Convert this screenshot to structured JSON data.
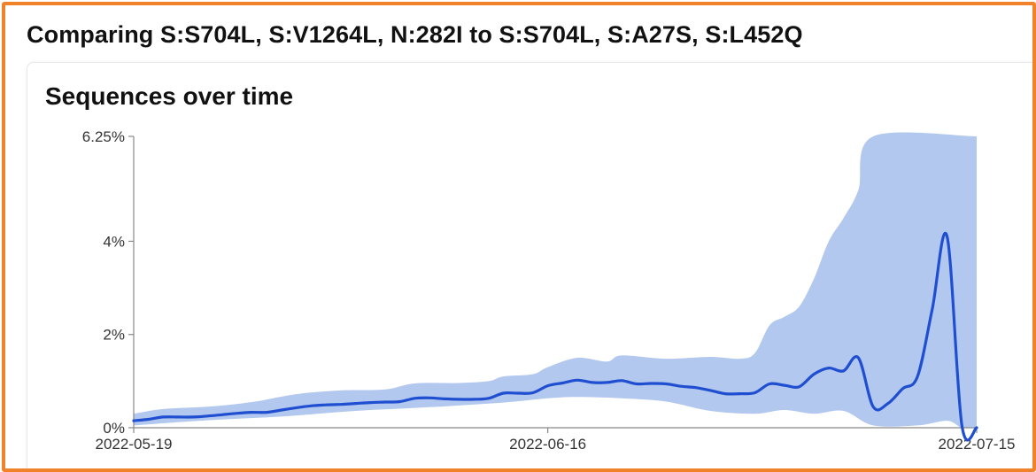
{
  "page": {
    "title": "Comparing S:S704L, S:V1264L, N:282I to S:S704L, S:A27S, S:L452Q"
  },
  "card": {
    "title": "Sequences over time"
  },
  "colors": {
    "frame_border": "#f0832a",
    "line": "#1f4fd0",
    "band": "#b3c8ef",
    "axis": "#888888"
  },
  "chart_data": {
    "type": "area",
    "x_type": "date",
    "xlabel": "",
    "ylabel": "",
    "xlim": [
      "2022-05-19",
      "2022-07-15"
    ],
    "ylim": [
      0,
      6.25
    ],
    "y_unit": "%",
    "y_ticks": [
      {
        "value": 0,
        "label": "0%"
      },
      {
        "value": 2,
        "label": "2%"
      },
      {
        "value": 4,
        "label": "4%"
      },
      {
        "value": 6.25,
        "label": "6.25%"
      }
    ],
    "x_ticks": [
      {
        "value": "2022-05-19",
        "label": "2022-05-19"
      },
      {
        "value": "2022-06-16",
        "label": "2022-06-16"
      },
      {
        "value": "2022-07-15",
        "label": "2022-07-15"
      }
    ],
    "grid": false,
    "legend": "none",
    "series": [
      {
        "kind": "line",
        "points": [
          [
            "2022-05-19",
            0.15
          ],
          [
            "2022-05-20",
            0.18
          ],
          [
            "2022-05-21",
            0.23
          ],
          [
            "2022-05-22",
            0.23
          ],
          [
            "2022-05-23",
            0.23
          ],
          [
            "2022-05-24",
            0.25
          ],
          [
            "2022-05-25",
            0.28
          ],
          [
            "2022-05-26",
            0.31
          ],
          [
            "2022-05-27",
            0.33
          ],
          [
            "2022-05-28",
            0.33
          ],
          [
            "2022-05-29",
            0.38
          ],
          [
            "2022-05-30",
            0.43
          ],
          [
            "2022-05-31",
            0.47
          ],
          [
            "2022-06-01",
            0.49
          ],
          [
            "2022-06-02",
            0.5
          ],
          [
            "2022-06-03",
            0.52
          ],
          [
            "2022-06-04",
            0.54
          ],
          [
            "2022-06-05",
            0.55
          ],
          [
            "2022-06-06",
            0.56
          ],
          [
            "2022-06-07",
            0.63
          ],
          [
            "2022-06-08",
            0.64
          ],
          [
            "2022-06-09",
            0.62
          ],
          [
            "2022-06-10",
            0.61
          ],
          [
            "2022-06-11",
            0.61
          ],
          [
            "2022-06-12",
            0.63
          ],
          [
            "2022-06-13",
            0.74
          ],
          [
            "2022-06-14",
            0.74
          ],
          [
            "2022-06-15",
            0.75
          ],
          [
            "2022-06-16",
            0.9
          ],
          [
            "2022-06-17",
            0.96
          ],
          [
            "2022-06-18",
            1.02
          ],
          [
            "2022-06-19",
            0.97
          ],
          [
            "2022-06-20",
            0.97
          ],
          [
            "2022-06-21",
            1.01
          ],
          [
            "2022-06-22",
            0.94
          ],
          [
            "2022-06-23",
            0.95
          ],
          [
            "2022-06-24",
            0.94
          ],
          [
            "2022-06-25",
            0.89
          ],
          [
            "2022-06-26",
            0.86
          ],
          [
            "2022-06-27",
            0.8
          ],
          [
            "2022-06-28",
            0.73
          ],
          [
            "2022-06-29",
            0.73
          ],
          [
            "2022-06-30",
            0.75
          ],
          [
            "2022-07-01",
            0.94
          ],
          [
            "2022-07-02",
            0.91
          ],
          [
            "2022-07-03",
            0.88
          ],
          [
            "2022-07-04",
            1.15
          ],
          [
            "2022-07-05",
            1.28
          ],
          [
            "2022-07-06",
            1.22
          ],
          [
            "2022-07-07",
            1.5
          ],
          [
            "2022-07-08",
            0.45
          ],
          [
            "2022-07-09",
            0.52
          ],
          [
            "2022-07-10",
            0.84
          ],
          [
            "2022-07-11",
            1.1
          ],
          [
            "2022-07-12",
            2.55
          ],
          [
            "2022-07-13",
            4.1
          ],
          [
            "2022-07-14",
            0.05
          ],
          [
            "2022-07-15",
            0.0
          ]
        ]
      },
      {
        "kind": "band",
        "lower": [
          [
            "2022-05-19",
            0.05
          ],
          [
            "2022-05-24",
            0.16
          ],
          [
            "2022-05-29",
            0.24
          ],
          [
            "2022-06-03",
            0.36
          ],
          [
            "2022-06-08",
            0.44
          ],
          [
            "2022-06-13",
            0.54
          ],
          [
            "2022-06-16",
            0.63
          ],
          [
            "2022-06-18",
            0.66
          ],
          [
            "2022-06-21",
            0.63
          ],
          [
            "2022-06-24",
            0.56
          ],
          [
            "2022-06-27",
            0.36
          ],
          [
            "2022-06-30",
            0.3
          ],
          [
            "2022-07-02",
            0.38
          ],
          [
            "2022-07-04",
            0.3
          ],
          [
            "2022-07-06",
            0.36
          ],
          [
            "2022-07-08",
            0.05
          ],
          [
            "2022-07-11",
            0.05
          ],
          [
            "2022-07-13",
            0.15
          ],
          [
            "2022-07-14",
            0.0
          ],
          [
            "2022-07-15",
            0.0
          ]
        ],
        "upper": [
          [
            "2022-05-19",
            0.3
          ],
          [
            "2022-05-21",
            0.4
          ],
          [
            "2022-05-24",
            0.45
          ],
          [
            "2022-05-27",
            0.55
          ],
          [
            "2022-05-30",
            0.72
          ],
          [
            "2022-06-02",
            0.8
          ],
          [
            "2022-06-05",
            0.82
          ],
          [
            "2022-06-07",
            0.95
          ],
          [
            "2022-06-10",
            0.96
          ],
          [
            "2022-06-12",
            1.0
          ],
          [
            "2022-06-13",
            1.1
          ],
          [
            "2022-06-15",
            1.15
          ],
          [
            "2022-06-16",
            1.3
          ],
          [
            "2022-06-18",
            1.5
          ],
          [
            "2022-06-20",
            1.42
          ],
          [
            "2022-06-21",
            1.55
          ],
          [
            "2022-06-24",
            1.48
          ],
          [
            "2022-06-27",
            1.52
          ],
          [
            "2022-06-29",
            1.48
          ],
          [
            "2022-06-30",
            1.6
          ],
          [
            "2022-07-01",
            2.2
          ],
          [
            "2022-07-02",
            2.38
          ],
          [
            "2022-07-03",
            2.6
          ],
          [
            "2022-07-04",
            3.2
          ],
          [
            "2022-07-05",
            4.0
          ],
          [
            "2022-07-06",
            4.5
          ],
          [
            "2022-07-07",
            5.1
          ],
          [
            "2022-07-08",
            6.25
          ],
          [
            "2022-07-15",
            6.25
          ]
        ]
      }
    ]
  }
}
